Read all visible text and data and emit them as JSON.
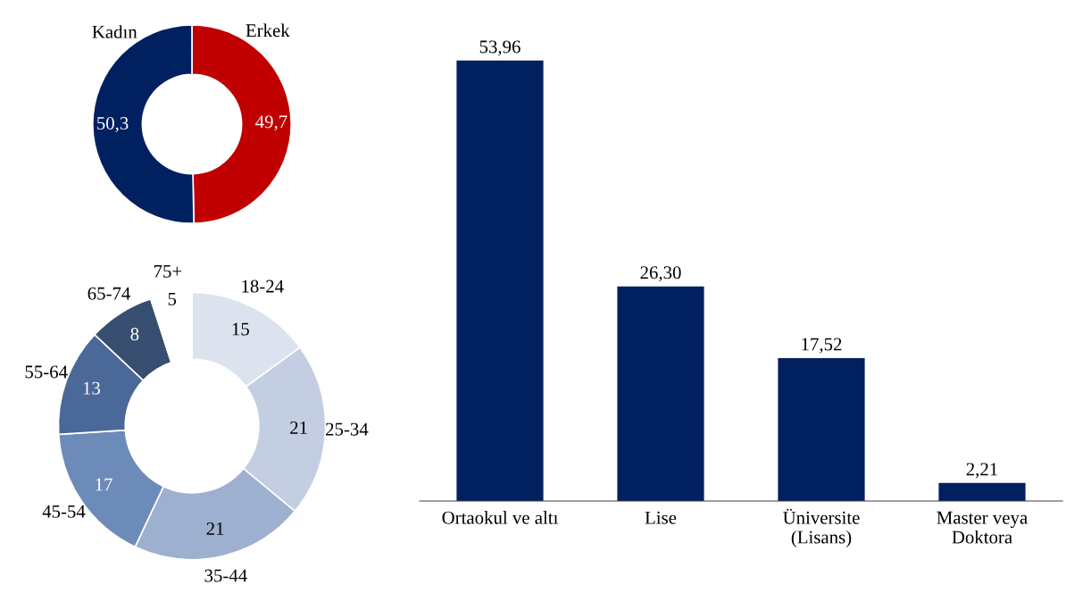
{
  "chart_data": [
    {
      "type": "donut",
      "categories": [
        "Erkek",
        "Kadın"
      ],
      "values": [
        49.7,
        50.3
      ],
      "colors": [
        "#c00000",
        "#002060"
      ],
      "value_labels": [
        "49,7",
        "50,3"
      ]
    },
    {
      "type": "donut",
      "categories": [
        "18-24",
        "25-34",
        "35-44",
        "45-54",
        "55-64",
        "65-74",
        "75+"
      ],
      "values": [
        15,
        21,
        21,
        17,
        13,
        8,
        5
      ],
      "colors": [
        "#dce3ef",
        "#c3cee2",
        "#9db0d0",
        "#6d8bb8",
        "#4a6898",
        "#374e70",
        "#ffffff"
      ],
      "value_labels": [
        "15",
        "21",
        "21",
        "17",
        "13",
        "8",
        "5"
      ]
    },
    {
      "type": "bar",
      "categories": [
        "Ortaokul ve altı",
        "Lise",
        "Üniversite\n(Lisans)",
        "Master veya\nDoktora"
      ],
      "values": [
        53.96,
        26.3,
        17.52,
        2.21
      ],
      "color": "#002060",
      "value_labels": [
        "53,96",
        "26,30",
        "17,52",
        "2,21"
      ]
    }
  ]
}
